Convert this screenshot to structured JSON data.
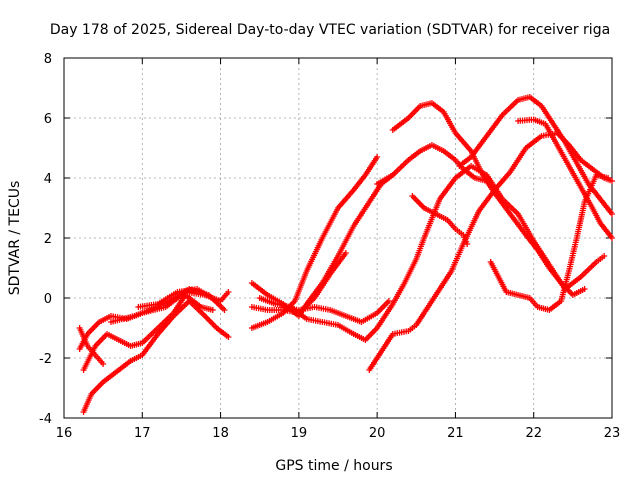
{
  "chart_data": {
    "type": "scatter",
    "title": "Day 178 of 2025, Sidereal Day-to-day VTEC variation (SDTVAR) for receiver riga",
    "xlabel": "GPS time / hours",
    "ylabel": "SDTVAR / TECUs",
    "xlim": [
      16,
      23
    ],
    "ylim": [
      -4,
      8
    ],
    "xticks": [
      "16",
      "17",
      "18",
      "19",
      "20",
      "21",
      "22",
      "23"
    ],
    "yticks": [
      "-4",
      "-2",
      "0",
      "2",
      "4",
      "6",
      "8"
    ],
    "grid": true,
    "marker": "+",
    "color": "#ff0000",
    "series": [
      {
        "name": "track-1",
        "points": [
          [
            16.25,
            -3.8
          ],
          [
            16.35,
            -3.2
          ],
          [
            16.5,
            -2.8
          ],
          [
            16.7,
            -2.4
          ],
          [
            16.85,
            -2.1
          ],
          [
            17.0,
            -1.9
          ],
          [
            17.2,
            -1.2
          ],
          [
            17.4,
            -0.6
          ],
          [
            17.6,
            -0.1
          ],
          [
            17.8,
            -0.6
          ],
          [
            17.95,
            -1.0
          ],
          [
            18.1,
            -1.3
          ]
        ]
      },
      {
        "name": "track-2",
        "points": [
          [
            16.2,
            -1.7
          ],
          [
            16.3,
            -1.2
          ],
          [
            16.45,
            -0.8
          ],
          [
            16.6,
            -0.6
          ],
          [
            16.8,
            -0.7
          ],
          [
            17.0,
            -0.5
          ],
          [
            17.3,
            -0.3
          ],
          [
            17.55,
            0.2
          ],
          [
            17.8,
            0.1
          ],
          [
            18.0,
            -0.1
          ],
          [
            18.1,
            0.2
          ]
        ]
      },
      {
        "name": "track-3",
        "points": [
          [
            16.25,
            -2.4
          ],
          [
            16.4,
            -1.6
          ],
          [
            16.55,
            -1.2
          ],
          [
            16.7,
            -1.4
          ],
          [
            16.85,
            -1.6
          ],
          [
            17.0,
            -1.5
          ],
          [
            17.2,
            -1.0
          ],
          [
            17.4,
            -0.5
          ],
          [
            17.55,
            0.1
          ],
          [
            17.75,
            -0.3
          ],
          [
            17.9,
            -0.4
          ]
        ]
      },
      {
        "name": "track-4",
        "points": [
          [
            16.2,
            -1.0
          ],
          [
            16.3,
            -1.6
          ],
          [
            16.4,
            -1.9
          ],
          [
            16.5,
            -2.2
          ]
        ]
      },
      {
        "name": "track-5",
        "points": [
          [
            16.6,
            -0.8
          ],
          [
            16.9,
            -0.6
          ],
          [
            17.1,
            -0.4
          ],
          [
            17.35,
            -0.1
          ],
          [
            17.6,
            0.3
          ],
          [
            17.85,
            0.1
          ],
          [
            18.05,
            -0.4
          ]
        ]
      },
      {
        "name": "track-6",
        "points": [
          [
            16.95,
            -0.3
          ],
          [
            17.2,
            -0.2
          ],
          [
            17.45,
            0.2
          ],
          [
            17.7,
            0.3
          ],
          [
            17.95,
            -0.1
          ]
        ]
      },
      {
        "name": "track-7",
        "points": [
          [
            18.4,
            -1.0
          ],
          [
            18.6,
            -0.8
          ],
          [
            18.8,
            -0.5
          ],
          [
            18.95,
            -0.1
          ],
          [
            19.1,
            0.9
          ],
          [
            19.3,
            2.0
          ],
          [
            19.5,
            3.0
          ],
          [
            19.7,
            3.6
          ],
          [
            19.85,
            4.1
          ],
          [
            20.0,
            4.7
          ]
        ]
      },
      {
        "name": "track-8",
        "points": [
          [
            18.4,
            0.5
          ],
          [
            18.6,
            0.1
          ],
          [
            18.8,
            -0.2
          ],
          [
            19.0,
            -0.6
          ],
          [
            19.1,
            -0.2
          ],
          [
            19.3,
            0.5
          ],
          [
            19.5,
            1.4
          ],
          [
            19.7,
            2.4
          ],
          [
            19.9,
            3.2
          ],
          [
            20.05,
            3.8
          ],
          [
            20.2,
            4.1
          ]
        ]
      },
      {
        "name": "track-9",
        "points": [
          [
            18.4,
            -0.3
          ],
          [
            18.6,
            -0.4
          ],
          [
            18.8,
            -0.4
          ],
          [
            19.0,
            -0.5
          ],
          [
            19.2,
            0.0
          ],
          [
            19.4,
            0.8
          ],
          [
            19.6,
            1.5
          ]
        ]
      },
      {
        "name": "track-10",
        "points": [
          [
            18.5,
            0.0
          ],
          [
            18.7,
            -0.2
          ],
          [
            18.9,
            -0.3
          ],
          [
            19.1,
            -0.7
          ],
          [
            19.3,
            -0.8
          ],
          [
            19.5,
            -0.9
          ],
          [
            19.7,
            -1.2
          ],
          [
            19.85,
            -1.4
          ],
          [
            20.0,
            -1.0
          ],
          [
            20.2,
            -0.2
          ],
          [
            20.35,
            0.5
          ],
          [
            20.5,
            1.3
          ],
          [
            20.6,
            2.0
          ],
          [
            20.8,
            3.3
          ],
          [
            21.0,
            4.0
          ],
          [
            21.2,
            4.4
          ],
          [
            21.4,
            4.1
          ],
          [
            21.6,
            3.3
          ],
          [
            21.8,
            2.8
          ],
          [
            22.0,
            1.9
          ],
          [
            22.2,
            1.1
          ],
          [
            22.4,
            0.3
          ],
          [
            22.6,
            0.7
          ],
          [
            22.8,
            1.2
          ],
          [
            22.9,
            1.4
          ]
        ]
      },
      {
        "name": "track-11",
        "points": [
          [
            18.8,
            -0.3
          ],
          [
            19.0,
            -0.4
          ],
          [
            19.2,
            -0.3
          ],
          [
            19.4,
            -0.4
          ],
          [
            19.6,
            -0.6
          ],
          [
            19.8,
            -0.8
          ],
          [
            20.0,
            -0.5
          ],
          [
            20.15,
            -0.1
          ]
        ]
      },
      {
        "name": "track-12",
        "points": [
          [
            19.9,
            -2.4
          ],
          [
            20.05,
            -1.8
          ],
          [
            20.2,
            -1.2
          ],
          [
            20.4,
            -1.1
          ],
          [
            20.5,
            -0.9
          ],
          [
            20.6,
            -0.5
          ],
          [
            20.8,
            0.3
          ],
          [
            20.95,
            0.9
          ],
          [
            21.1,
            1.8
          ],
          [
            21.3,
            2.9
          ],
          [
            21.5,
            3.6
          ],
          [
            21.7,
            4.2
          ],
          [
            21.9,
            5.0
          ],
          [
            22.1,
            5.4
          ],
          [
            22.3,
            5.5
          ],
          [
            22.45,
            5.1
          ],
          [
            22.6,
            4.6
          ],
          [
            22.75,
            4.3
          ],
          [
            22.9,
            4.0
          ],
          [
            23.0,
            3.9
          ]
        ]
      },
      {
        "name": "track-13",
        "points": [
          [
            20.0,
            3.8
          ],
          [
            20.2,
            4.1
          ],
          [
            20.4,
            4.6
          ],
          [
            20.55,
            4.9
          ],
          [
            20.7,
            5.1
          ],
          [
            20.85,
            4.9
          ],
          [
            21.0,
            4.6
          ],
          [
            21.1,
            4.3
          ],
          [
            21.25,
            4.0
          ],
          [
            21.4,
            3.9
          ]
        ]
      },
      {
        "name": "track-14",
        "points": [
          [
            20.2,
            5.6
          ],
          [
            20.4,
            6.0
          ],
          [
            20.55,
            6.4
          ],
          [
            20.7,
            6.5
          ],
          [
            20.85,
            6.2
          ],
          [
            21.0,
            5.5
          ],
          [
            21.2,
            4.9
          ],
          [
            21.35,
            4.1
          ],
          [
            21.5,
            3.5
          ],
          [
            21.7,
            2.8
          ],
          [
            21.9,
            2.1
          ],
          [
            22.05,
            1.6
          ],
          [
            22.2,
            1.0
          ],
          [
            22.35,
            0.5
          ],
          [
            22.5,
            0.1
          ],
          [
            22.65,
            0.3
          ]
        ]
      },
      {
        "name": "track-15",
        "points": [
          [
            20.45,
            3.4
          ],
          [
            20.6,
            3.0
          ],
          [
            20.75,
            2.8
          ],
          [
            20.9,
            2.6
          ],
          [
            21.0,
            2.3
          ],
          [
            21.1,
            2.1
          ],
          [
            21.15,
            1.8
          ]
        ]
      },
      {
        "name": "track-16",
        "points": [
          [
            21.05,
            4.4
          ],
          [
            21.2,
            4.7
          ],
          [
            21.4,
            5.4
          ],
          [
            21.6,
            6.1
          ],
          [
            21.8,
            6.6
          ],
          [
            21.95,
            6.7
          ],
          [
            22.1,
            6.4
          ],
          [
            22.25,
            5.8
          ],
          [
            22.4,
            5.2
          ],
          [
            22.55,
            4.5
          ],
          [
            22.7,
            3.8
          ],
          [
            22.85,
            3.3
          ],
          [
            23.0,
            2.8
          ]
        ]
      },
      {
        "name": "track-17",
        "points": [
          [
            21.45,
            1.2
          ],
          [
            21.55,
            0.7
          ],
          [
            21.65,
            0.2
          ],
          [
            21.8,
            0.1
          ],
          [
            21.95,
            0.0
          ],
          [
            22.05,
            -0.3
          ],
          [
            22.2,
            -0.4
          ],
          [
            22.35,
            -0.1
          ],
          [
            22.45,
            0.9
          ],
          [
            22.55,
            2.0
          ],
          [
            22.65,
            3.2
          ],
          [
            22.8,
            4.1
          ],
          [
            22.95,
            4.0
          ]
        ]
      },
      {
        "name": "track-18",
        "points": [
          [
            21.8,
            5.9
          ],
          [
            22.0,
            5.95
          ],
          [
            22.15,
            5.8
          ],
          [
            22.3,
            5.1
          ],
          [
            22.45,
            4.4
          ],
          [
            22.6,
            3.7
          ],
          [
            22.75,
            3.0
          ],
          [
            22.85,
            2.5
          ],
          [
            23.0,
            2.0
          ]
        ]
      }
    ]
  }
}
